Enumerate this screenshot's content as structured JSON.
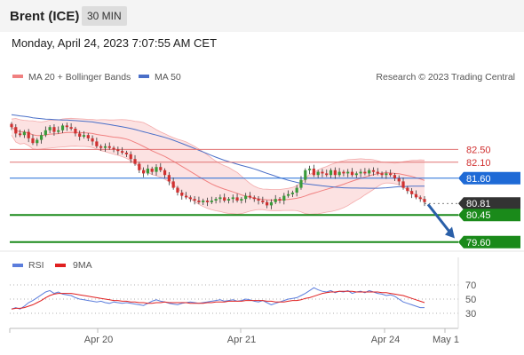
{
  "header": {
    "title": "Brent (ICE)",
    "timeframe": "30 MIN"
  },
  "date_line": "Monday, April 24, 2023 7:07:55 AM CET",
  "legend": {
    "ma20_label": "MA 20 + Bollinger Bands",
    "ma50_label": "MA 50",
    "copyright": "Research © 2023 Trading Central",
    "rsi_label": "RSI",
    "rsi9_label": "9MA"
  },
  "colors": {
    "ma20": "#f08080",
    "ma50": "#4a6fc8",
    "bull": "#3a9a3a",
    "bear": "#d03030",
    "resistance": "#e07070",
    "support": "#1a8a1a",
    "pivot": "#1e6ad6",
    "current": "#333333",
    "rsi": "#5b7ddc",
    "rsi9": "#e02020",
    "arrow": "#2a5fa8"
  },
  "chart_data": {
    "type": "candlestick",
    "x_ticks": [
      "Apr 20",
      "Apr 21",
      "Apr 24",
      "May 1"
    ],
    "price_range": [
      79.4,
      84.4
    ],
    "levels": [
      {
        "value": "82.50",
        "kind": "resistance"
      },
      {
        "value": "82.10",
        "kind": "resistance"
      },
      {
        "value": "81.60",
        "kind": "pivot"
      },
      {
        "value": "80.81",
        "kind": "current"
      },
      {
        "value": "80.45",
        "kind": "support"
      },
      {
        "value": "79.60",
        "kind": "support"
      }
    ],
    "rsi_ticks": [
      "70",
      "50",
      "30"
    ],
    "closes": [
      83.2,
      83.0,
      82.95,
      83.05,
      82.85,
      82.7,
      82.8,
      82.95,
      83.1,
      83.2,
      83.05,
      83.1,
      83.25,
      83.2,
      83.15,
      83.0,
      82.9,
      82.95,
      82.85,
      82.75,
      82.6,
      82.55,
      82.6,
      82.55,
      82.5,
      82.45,
      82.4,
      82.35,
      82.2,
      82.05,
      81.85,
      81.75,
      81.9,
      81.8,
      81.95,
      81.85,
      81.7,
      81.5,
      81.3,
      81.15,
      81.05,
      81.0,
      80.95,
      80.9,
      80.85,
      80.9,
      80.85,
      80.9,
      80.95,
      81.0,
      80.9,
      80.95,
      81.0,
      80.9,
      80.95,
      81.05,
      81.0,
      80.95,
      80.9,
      80.85,
      80.75,
      80.85,
      80.95,
      80.9,
      81.05,
      81.1,
      81.15,
      81.3,
      81.55,
      81.85,
      81.9,
      81.7,
      81.8,
      81.75,
      81.7,
      81.85,
      81.7,
      81.8,
      81.75,
      81.8,
      81.7,
      81.75,
      81.8,
      81.75,
      81.85,
      81.8,
      81.75,
      81.7,
      81.75,
      81.7,
      81.6,
      81.5,
      81.3,
      81.2,
      81.1,
      81.0,
      80.95,
      80.85
    ],
    "rsi": [
      36,
      38,
      36,
      40,
      45,
      48,
      52,
      56,
      60,
      62,
      58,
      60,
      57,
      56,
      55,
      52,
      50,
      49,
      48,
      47,
      46,
      47,
      45,
      44,
      46,
      45,
      44,
      45,
      44,
      43,
      42,
      41,
      44,
      47,
      49,
      47,
      46,
      44,
      43,
      42,
      44,
      45,
      46,
      45,
      44,
      45,
      46,
      47,
      48,
      49,
      47,
      48,
      49,
      47,
      48,
      50,
      49,
      47,
      46,
      48,
      45,
      42,
      44,
      46,
      48,
      50,
      51,
      52,
      55,
      58,
      62,
      66,
      63,
      61,
      60,
      62,
      59,
      61,
      60,
      62,
      58,
      60,
      61,
      59,
      62,
      60,
      58,
      57,
      55,
      56,
      54,
      50,
      46,
      44,
      42,
      40,
      38,
      38
    ],
    "rsi_ma": [
      36,
      37,
      37,
      38,
      40,
      42,
      45,
      48,
      52,
      55,
      57,
      58,
      58,
      58,
      58,
      57,
      56,
      55,
      54,
      53,
      52,
      51,
      50,
      49,
      48,
      48,
      47,
      47,
      46,
      46,
      45,
      45,
      44,
      44,
      45,
      45,
      46,
      45,
      45,
      45,
      45,
      45,
      44,
      44,
      44,
      44,
      45,
      45,
      46,
      46,
      46,
      47,
      47,
      47,
      47,
      48,
      48,
      48,
      48,
      48,
      47,
      47,
      46,
      46,
      46,
      47,
      48,
      48,
      49,
      51,
      52,
      54,
      56,
      58,
      59,
      60,
      60,
      61,
      61,
      61,
      61,
      60,
      60,
      60,
      60,
      60,
      60,
      59,
      59,
      58,
      57,
      56,
      55,
      53,
      51,
      49,
      47,
      45
    ]
  }
}
